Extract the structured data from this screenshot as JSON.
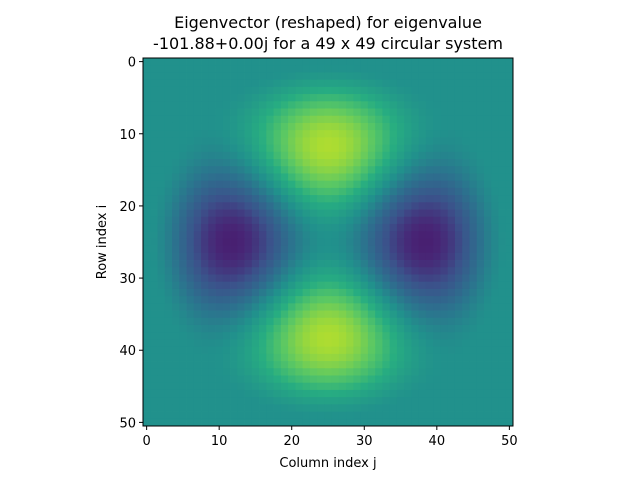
{
  "chart_data": {
    "type": "heatmap",
    "title_line1": "Eigenvector (reshaped) for eigenvalue",
    "title_line2": "-101.88+0.00j for a 49 x 49 circular system",
    "xlabel": "Column index j",
    "ylabel": "Row index i",
    "xlim": [
      -0.5,
      50.5
    ],
    "ylim": [
      50.5,
      -0.5
    ],
    "y_inverted": true,
    "x_ticks": [
      0,
      10,
      20,
      30,
      40,
      50
    ],
    "y_ticks": [
      0,
      10,
      20,
      30,
      40,
      50
    ],
    "x_tick_labels": [
      "0",
      "10",
      "20",
      "30",
      "40",
      "50"
    ],
    "y_tick_labels": [
      "0",
      "10",
      "20",
      "30",
      "40",
      "50"
    ],
    "grid_size": 51,
    "circle_center": [
      25,
      25
    ],
    "circle_radius": 24.5,
    "colormap": "viridis",
    "background_value": 0.0,
    "peaks": [
      {
        "row": 10.5,
        "col": 25,
        "sign": "positive",
        "label": "yellow"
      },
      {
        "row": 39.5,
        "col": 25,
        "sign": "positive",
        "label": "yellow"
      },
      {
        "row": 25,
        "col": 10,
        "sign": "negative",
        "label": "purple"
      },
      {
        "row": 25,
        "col": 40,
        "sign": "negative",
        "label": "purple"
      }
    ],
    "value_range": [
      -1,
      1
    ],
    "grid": false
  },
  "colors": {
    "background": "#ffffff",
    "axis": "#000000",
    "viridis_low": "#440154",
    "viridis_mid": "#21918c",
    "viridis_high": "#fde725"
  }
}
